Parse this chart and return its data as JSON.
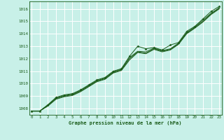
{
  "title": "Graphe pression niveau de la mer (hPa)",
  "bg_color": "#c8f0e8",
  "grid_color": "#b8e8d8",
  "line_color": "#1a5c1a",
  "text_color": "#1a5c1a",
  "xlim": [
    -0.3,
    23.3
  ],
  "ylim": [
    1007.5,
    1016.6
  ],
  "yticks": [
    1008,
    1009,
    1010,
    1011,
    1012,
    1013,
    1014,
    1015,
    1016
  ],
  "xticks": [
    0,
    1,
    2,
    3,
    4,
    5,
    6,
    7,
    8,
    9,
    10,
    11,
    12,
    13,
    14,
    15,
    16,
    17,
    18,
    19,
    20,
    21,
    22,
    23
  ],
  "series": [
    [
      1007.8,
      1007.8,
      1008.3,
      1008.9,
      1009.1,
      1009.2,
      1009.5,
      1009.9,
      1010.3,
      1010.5,
      1011.0,
      1011.2,
      1012.2,
      1013.0,
      1012.8,
      1012.9,
      1012.7,
      1013.1,
      1013.3,
      1014.2,
      1014.6,
      1015.2,
      1015.8,
      1016.2
    ],
    [
      1007.8,
      1007.8,
      1008.3,
      1008.85,
      1009.05,
      1009.15,
      1009.45,
      1009.85,
      1010.25,
      1010.45,
      1010.95,
      1011.15,
      1012.1,
      1012.6,
      1012.55,
      1012.85,
      1012.65,
      1012.8,
      1013.25,
      1014.1,
      1014.55,
      1015.1,
      1015.65,
      1016.1
    ],
    [
      1007.8,
      1007.8,
      1008.25,
      1008.8,
      1009.0,
      1009.1,
      1009.4,
      1009.8,
      1010.2,
      1010.4,
      1010.9,
      1011.1,
      1012.0,
      1012.55,
      1012.45,
      1012.8,
      1012.6,
      1012.75,
      1013.2,
      1014.05,
      1014.5,
      1015.0,
      1015.6,
      1016.05
    ],
    [
      1007.8,
      1007.8,
      1008.2,
      1008.75,
      1008.95,
      1009.05,
      1009.35,
      1009.75,
      1010.15,
      1010.35,
      1010.85,
      1011.05,
      1011.9,
      1012.5,
      1012.4,
      1012.75,
      1012.55,
      1012.7,
      1013.15,
      1014.0,
      1014.45,
      1014.95,
      1015.55,
      1016.0
    ]
  ],
  "marker_series": 0
}
